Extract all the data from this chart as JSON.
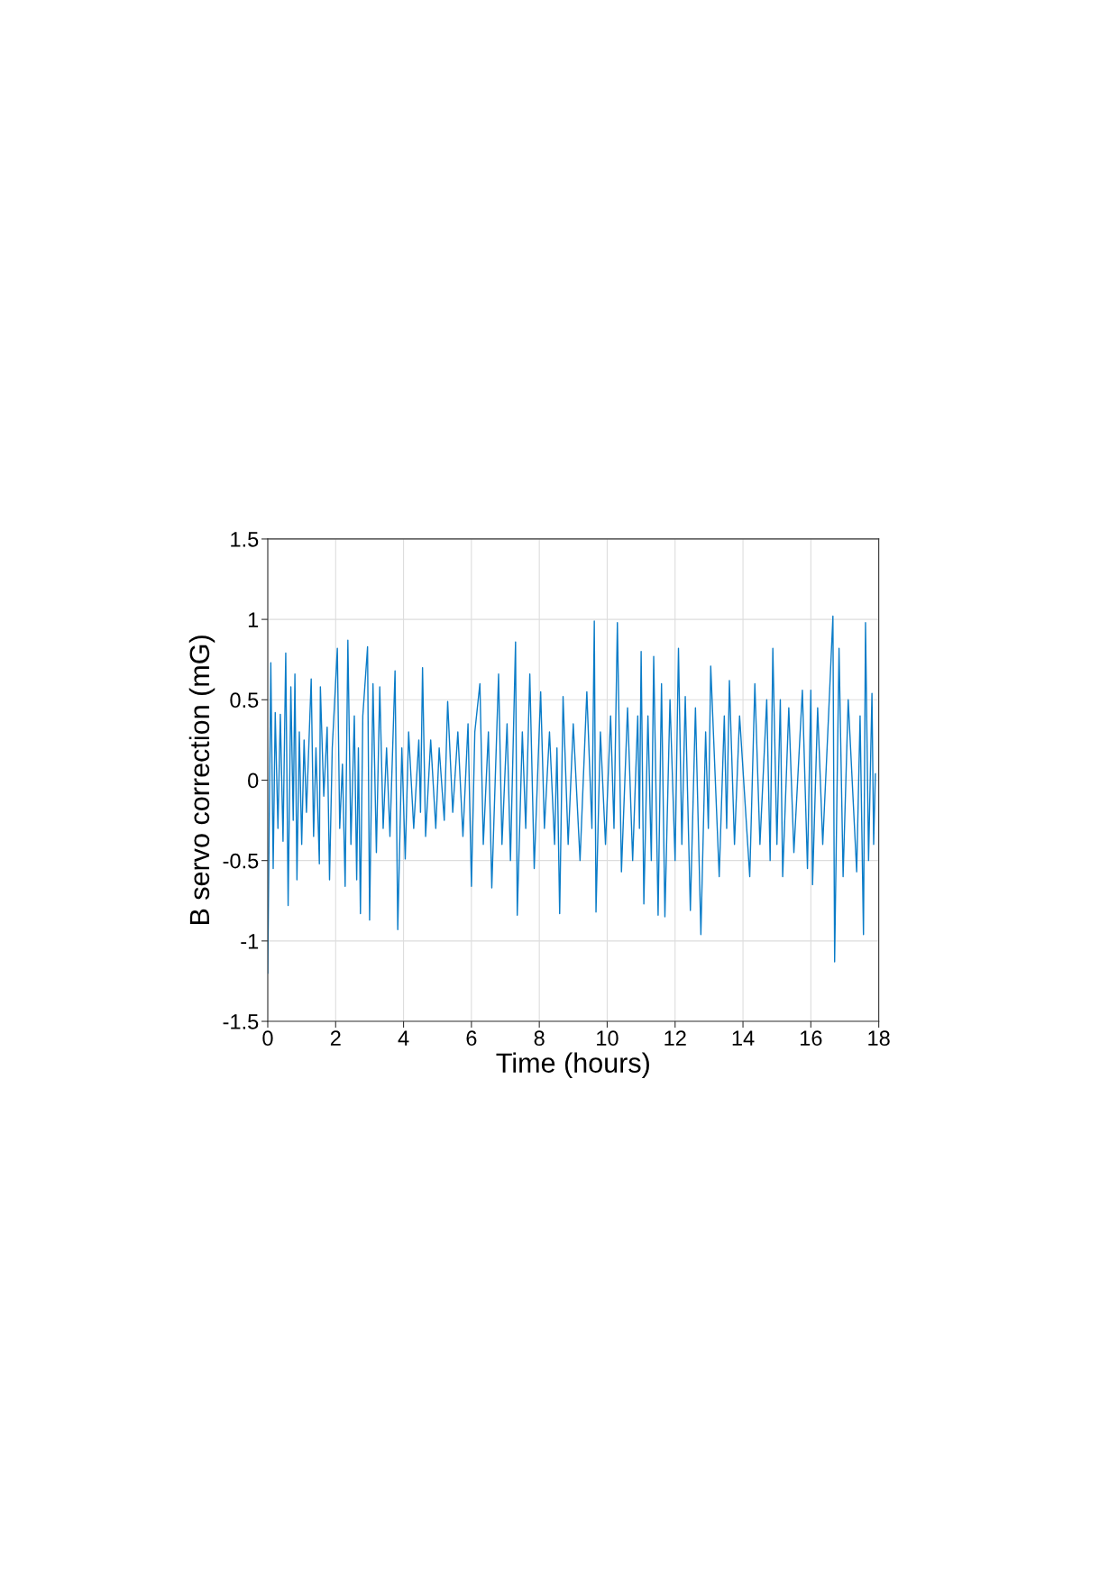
{
  "chart_data": {
    "type": "line",
    "xlabel": "Time (hours)",
    "ylabel": "B servo correction (mG)",
    "xlim": [
      0,
      18
    ],
    "xticks": [
      0,
      2,
      4,
      6,
      8,
      10,
      12,
      14,
      16,
      18
    ],
    "ylim": [
      -1.5,
      1.5
    ],
    "yticks": [
      -1.5,
      -1,
      -0.5,
      0,
      0.5,
      1,
      1.5
    ],
    "grid": true,
    "marker": "none",
    "line_style": "solid",
    "series": [
      {
        "color": "#0a7cc8",
        "x": [
          0,
          0.09,
          0.16,
          0.22,
          0.3,
          0.37,
          0.45,
          0.53,
          0.6,
          0.68,
          0.75,
          0.8,
          0.86,
          0.93,
          1.0,
          1.07,
          1.14,
          1.28,
          1.35,
          1.42,
          1.52,
          1.55,
          1.65,
          1.75,
          1.82,
          1.9,
          2.05,
          2.12,
          2.2,
          2.28,
          2.36,
          2.45,
          2.55,
          2.62,
          2.67,
          2.73,
          2.8,
          2.94,
          3.0,
          3.1,
          3.2,
          3.3,
          3.4,
          3.5,
          3.6,
          3.75,
          3.83,
          3.95,
          4.05,
          4.15,
          4.3,
          4.45,
          4.5,
          4.56,
          4.65,
          4.8,
          4.95,
          5.05,
          5.2,
          5.3,
          5.45,
          5.6,
          5.75,
          5.9,
          6.0,
          6.1,
          6.25,
          6.35,
          6.5,
          6.6,
          6.8,
          6.9,
          7.05,
          7.15,
          7.3,
          7.35,
          7.5,
          7.6,
          7.72,
          7.85,
          8.04,
          8.15,
          8.3,
          8.45,
          8.52,
          8.6,
          8.7,
          8.85,
          9.0,
          9.2,
          9.4,
          9.55,
          9.62,
          9.67,
          9.8,
          9.95,
          10.1,
          10.2,
          10.3,
          10.42,
          10.6,
          10.75,
          10.9,
          10.95,
          11.0,
          11.08,
          11.2,
          11.3,
          11.37,
          11.5,
          11.6,
          11.7,
          11.85,
          12.0,
          12.1,
          12.2,
          12.3,
          12.45,
          12.6,
          12.76,
          12.9,
          12.98,
          13.05,
          13.3,
          13.45,
          13.52,
          13.6,
          13.75,
          13.9,
          14.2,
          14.35,
          14.5,
          14.7,
          14.8,
          14.88,
          15.0,
          15.1,
          15.17,
          15.35,
          15.5,
          15.75,
          15.9,
          16.0,
          16.05,
          16.2,
          16.35,
          16.5,
          16.65,
          16.7,
          16.83,
          16.95,
          17.1,
          17.35,
          17.45,
          17.55,
          17.61,
          17.7,
          17.8,
          17.85,
          17.9
        ],
        "values": [
          -1.2,
          0.73,
          -0.55,
          0.42,
          -0.3,
          0.41,
          -0.38,
          0.79,
          -0.78,
          0.58,
          -0.25,
          0.66,
          -0.62,
          0.3,
          -0.4,
          0.25,
          -0.2,
          0.63,
          -0.35,
          0.2,
          -0.52,
          0.58,
          -0.1,
          0.33,
          -0.62,
          0.2,
          0.82,
          -0.3,
          0.1,
          -0.66,
          0.87,
          -0.4,
          0.4,
          -0.62,
          0.2,
          -0.83,
          0.4,
          0.83,
          -0.87,
          0.6,
          -0.45,
          0.58,
          -0.3,
          0.2,
          -0.35,
          0.68,
          -0.93,
          0.2,
          -0.49,
          0.3,
          -0.3,
          0.25,
          -0.2,
          0.7,
          -0.35,
          0.25,
          -0.3,
          0.2,
          -0.25,
          0.49,
          -0.2,
          0.3,
          -0.35,
          0.35,
          -0.66,
          0.3,
          0.6,
          -0.4,
          0.3,
          -0.67,
          0.66,
          -0.4,
          0.35,
          -0.5,
          0.86,
          -0.84,
          0.3,
          -0.3,
          0.66,
          -0.55,
          0.55,
          -0.3,
          0.3,
          -0.4,
          0.2,
          -0.83,
          0.52,
          -0.4,
          0.35,
          -0.5,
          0.55,
          -0.3,
          0.99,
          -0.82,
          0.3,
          -0.4,
          0.4,
          -0.3,
          0.98,
          -0.57,
          0.45,
          -0.5,
          0.4,
          -0.3,
          0.8,
          -0.77,
          0.4,
          -0.5,
          0.77,
          -0.84,
          0.6,
          -0.85,
          0.5,
          -0.5,
          0.82,
          -0.4,
          0.52,
          -0.81,
          0.45,
          -0.96,
          0.3,
          -0.3,
          0.71,
          -0.6,
          0.4,
          -0.3,
          0.62,
          -0.4,
          0.4,
          -0.6,
          0.6,
          -0.4,
          0.5,
          -0.5,
          0.82,
          -0.4,
          0.5,
          -0.6,
          0.45,
          -0.45,
          0.56,
          -0.55,
          0.56,
          -0.65,
          0.45,
          -0.4,
          0.3,
          1.02,
          -1.13,
          0.82,
          -0.6,
          0.5,
          -0.57,
          0.4,
          -0.96,
          0.98,
          -0.5,
          0.54,
          -0.4,
          0.04
        ]
      }
    ]
  }
}
